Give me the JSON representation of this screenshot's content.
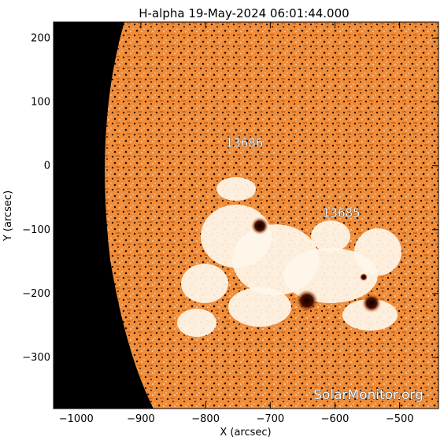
{
  "chart_data": {
    "type": "image",
    "title": "H-alpha 19-May-2024 06:01:44.000",
    "xlabel": "X (arcsec)",
    "ylabel": "Y (arcsec)",
    "xlim": [
      -1035,
      -440
    ],
    "ylim": [
      -380,
      225
    ],
    "xticks": [
      -1000,
      -900,
      -800,
      -700,
      -600,
      -500
    ],
    "yticks": [
      200,
      100,
      0,
      -100,
      -200,
      -300
    ],
    "regions": [
      {
        "label": "13686",
        "x": -740,
        "y": 30
      },
      {
        "label": "13685",
        "x": -590,
        "y": -80
      }
    ],
    "watermark": "SolarMonitor.org",
    "colors": {
      "disk": "#f0913e",
      "disk_dark": "#c85a14",
      "plage": "#fff6ea",
      "space": "#000000",
      "spot": "#3a0800"
    }
  }
}
